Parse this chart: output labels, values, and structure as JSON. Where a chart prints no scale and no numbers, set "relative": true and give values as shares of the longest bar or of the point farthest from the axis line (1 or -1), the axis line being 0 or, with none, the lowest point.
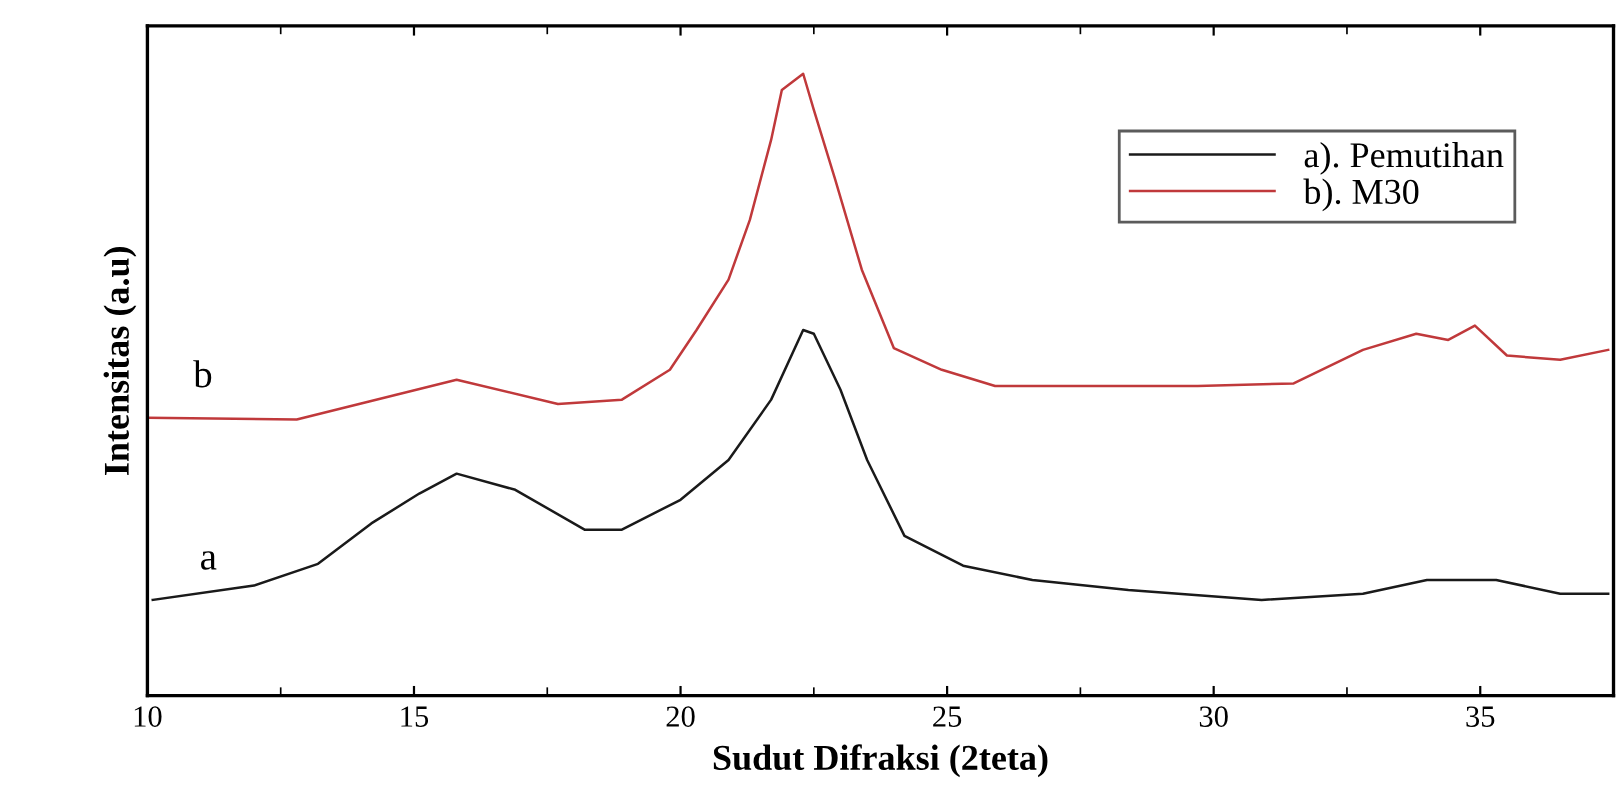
{
  "chart_data": {
    "type": "line",
    "relative": true,
    "xlabel": "Sudut Difraksi (2teta)",
    "ylabel": "Intensitas (a.u)",
    "xlim": [
      10,
      37.5
    ],
    "xticks": [
      10,
      15,
      20,
      25,
      30,
      35
    ],
    "legend": "top right",
    "grid": false,
    "annotations": [
      "a",
      "b"
    ],
    "series": [
      {
        "name": "a). Pemutihan",
        "color": "#1a1a1a",
        "x": [
          10.1,
          12.0,
          13.2,
          14.2,
          15.1,
          15.8,
          16.9,
          18.2,
          18.9,
          20.0,
          20.9,
          21.7,
          22.3,
          22.5,
          23.0,
          23.5,
          24.2,
          25.3,
          26.6,
          28.4,
          30.9,
          32.8,
          34.0,
          35.3,
          36.5,
          37.4
        ],
        "values": [
          0.154,
          0.177,
          0.212,
          0.277,
          0.325,
          0.357,
          0.331,
          0.267,
          0.267,
          0.315,
          0.379,
          0.476,
          0.588,
          0.582,
          0.492,
          0.379,
          0.257,
          0.209,
          0.186,
          0.17,
          0.154,
          0.164,
          0.186,
          0.186,
          0.164,
          0.164
        ]
      },
      {
        "name": "b). M30",
        "color": "#c0393b",
        "x": [
          10.0,
          12.8,
          15.8,
          17.7,
          18.9,
          19.8,
          20.3,
          20.9,
          21.3,
          21.7,
          21.9,
          22.3,
          22.5,
          22.9,
          23.4,
          24.0,
          24.9,
          25.9,
          27.8,
          29.7,
          31.5,
          32.8,
          33.8,
          34.4,
          34.9,
          35.5,
          36.5,
          37.4
        ],
        "values": [
          0.447,
          0.444,
          0.508,
          0.469,
          0.476,
          0.524,
          0.588,
          0.669,
          0.765,
          0.894,
          0.974,
          1.0,
          0.942,
          0.83,
          0.685,
          0.559,
          0.524,
          0.498,
          0.498,
          0.498,
          0.502,
          0.556,
          0.582,
          0.572,
          0.595,
          0.547,
          0.54,
          0.556
        ]
      }
    ]
  }
}
